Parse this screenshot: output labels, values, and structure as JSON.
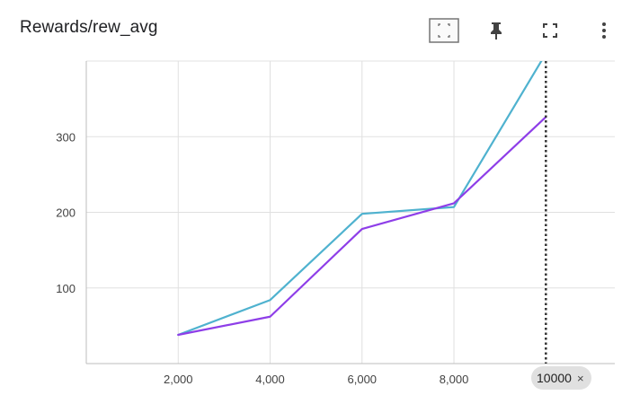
{
  "card": {
    "title": "Rewards/rew_avg"
  },
  "toolbar": {
    "icons": [
      "fit-domain-icon",
      "pin-icon",
      "fullscreen-icon",
      "more-vert-icon"
    ]
  },
  "cursor": {
    "step_label": "10000",
    "close_glyph": "×"
  },
  "colors": {
    "series_cyan": "#4fb2cf",
    "series_purple": "#8e3ee8",
    "grid": "#e0e0e0",
    "cursor_line": "#333333"
  },
  "chart_data": {
    "type": "line",
    "xlim": [
      0,
      11500
    ],
    "ylim": [
      0,
      400
    ],
    "x_ticks": [
      2000,
      4000,
      6000,
      8000
    ],
    "x_tick_labels": [
      "2,000",
      "4,000",
      "6,000",
      "8,000"
    ],
    "y_ticks": [
      100,
      200,
      300
    ],
    "y_tick_labels": [
      "100",
      "200",
      "300"
    ],
    "grid": true,
    "cursor_x": 10000,
    "series": [
      {
        "color": "#4fb2cf",
        "x": [
          2000,
          4000,
          6000,
          8000,
          10000
        ],
        "y": [
          38,
          84,
          198,
          207,
          410
        ]
      },
      {
        "color": "#8e3ee8",
        "x": [
          2000,
          4000,
          6000,
          8000,
          10000
        ],
        "y": [
          38,
          62,
          178,
          212,
          326
        ]
      }
    ]
  }
}
